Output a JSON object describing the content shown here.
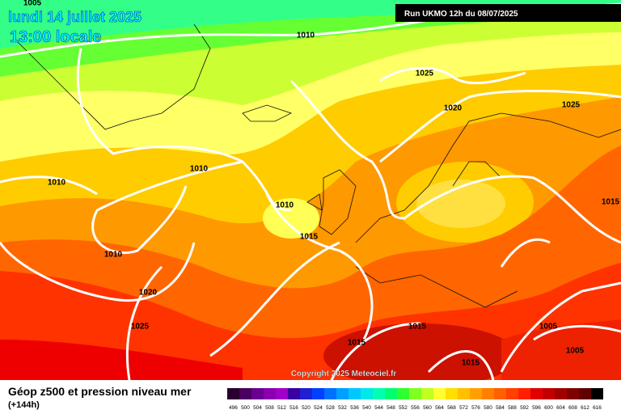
{
  "header": {
    "date": "lundi 14 juillet 2025",
    "time": "13:00 locale",
    "run": "Run UKMO 12h du 08/07/2025"
  },
  "isobar_labels": [
    "1005",
    "1010",
    "1025",
    "1020",
    "1025",
    "1010",
    "1010",
    "1010",
    "1015",
    "1015",
    "1010",
    "1020",
    "1025",
    "1015",
    "1015",
    "1005",
    "1015",
    "1005"
  ],
  "copyright": "Copyright 2025 Meteociel.fr",
  "footer": {
    "title": "Géop z500 et pression niveau mer",
    "subtitle": "(+144h)"
  },
  "scale": {
    "values": [
      496,
      500,
      504,
      508,
      512,
      516,
      520,
      524,
      528,
      532,
      536,
      540,
      544,
      548,
      552,
      556,
      560,
      564,
      568,
      572,
      576,
      580,
      584,
      588,
      592,
      596,
      600,
      604,
      608,
      612,
      616
    ],
    "colors": [
      "#2a0030",
      "#4a0060",
      "#6a0090",
      "#8a00b0",
      "#a000c8",
      "#3a00a0",
      "#2020d0",
      "#0040ff",
      "#0070ff",
      "#00a0ff",
      "#00c8ff",
      "#00e8e8",
      "#00ffb0",
      "#00ff70",
      "#30ff30",
      "#80ff20",
      "#c0ff20",
      "#ffff30",
      "#ffe000",
      "#ffc000",
      "#ffa000",
      "#ff8000",
      "#ff6000",
      "#ff4000",
      "#ff2000",
      "#e00000",
      "#c00000",
      "#a00000",
      "#800000",
      "#600000",
      "#000000"
    ]
  }
}
